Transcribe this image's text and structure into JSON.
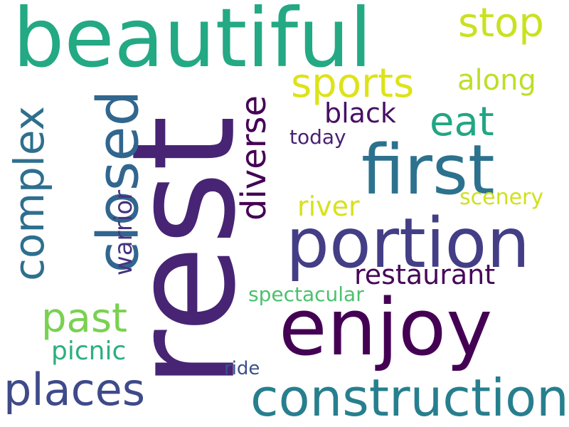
{
  "words": [
    {
      "text": "beautiful",
      "color": "#23a983",
      "orientation": "horizontal"
    },
    {
      "text": "rest",
      "color": "#482474",
      "orientation": "vertical"
    },
    {
      "text": "enjoy",
      "color": "#440154",
      "orientation": "horizontal"
    },
    {
      "text": "first",
      "color": "#2c728e",
      "orientation": "horizontal"
    },
    {
      "text": "portion",
      "color": "#433e85",
      "orientation": "horizontal"
    },
    {
      "text": "construction",
      "color": "#277f8e",
      "orientation": "horizontal"
    },
    {
      "text": "closed",
      "color": "#31668e",
      "orientation": "vertical"
    },
    {
      "text": "places",
      "color": "#3e4a89",
      "orientation": "horizontal"
    },
    {
      "text": "complex",
      "color": "#2e6f8e",
      "orientation": "vertical"
    },
    {
      "text": "sports",
      "color": "#dde318",
      "orientation": "horizontal"
    },
    {
      "text": "diverse",
      "color": "#440154",
      "orientation": "vertical"
    },
    {
      "text": "past",
      "color": "#7ad151",
      "orientation": "horizontal"
    },
    {
      "text": "eat",
      "color": "#21a685",
      "orientation": "horizontal"
    },
    {
      "text": "stop",
      "color": "#cae11f",
      "orientation": "horizontal"
    },
    {
      "text": "restaurant",
      "color": "#46075a",
      "orientation": "horizontal"
    },
    {
      "text": "warrior",
      "color": "#46337e",
      "orientation": "vertical"
    },
    {
      "text": "along",
      "color": "#bddf26",
      "orientation": "horizontal"
    },
    {
      "text": "black",
      "color": "#471063",
      "orientation": "horizontal"
    },
    {
      "text": "picnic",
      "color": "#2ab07f",
      "orientation": "horizontal"
    },
    {
      "text": "river",
      "color": "#d8e219",
      "orientation": "horizontal"
    },
    {
      "text": "scenery",
      "color": "#d0e11c",
      "orientation": "horizontal"
    },
    {
      "text": "spectacular",
      "color": "#4ac16d",
      "orientation": "horizontal"
    },
    {
      "text": "today",
      "color": "#482173",
      "orientation": "horizontal"
    },
    {
      "text": "ride",
      "color": "#3b518b",
      "orientation": "horizontal"
    }
  ]
}
